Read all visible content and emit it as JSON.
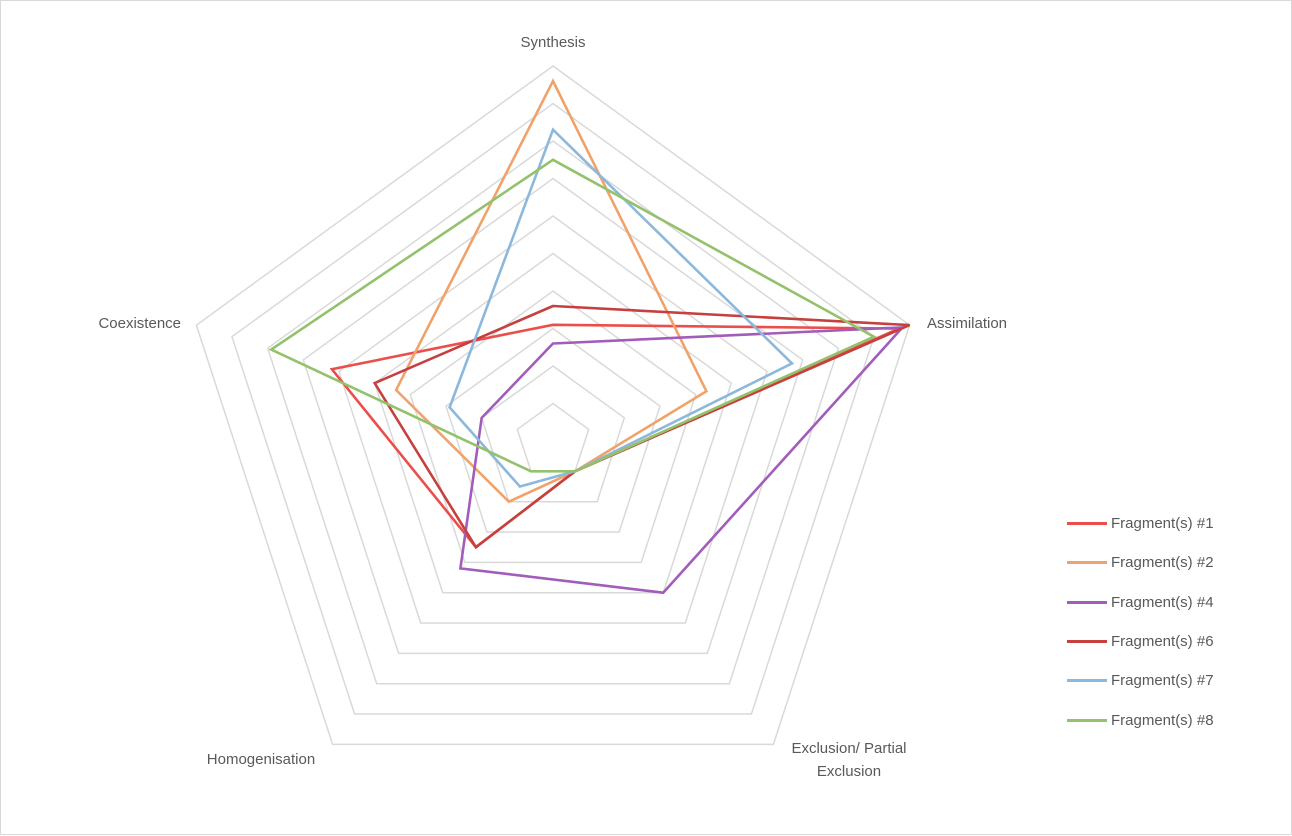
{
  "chart_data": {
    "type": "radar",
    "title": "",
    "axes": [
      "Synthesis",
      "Assimilation",
      "Exclusion/ Partial Exclusion",
      "Homogenisation",
      "Coexistence"
    ],
    "axis_label_lines": [
      [
        "Synthesis"
      ],
      [
        "Assimilation"
      ],
      [
        "Exclusion/ Partial",
        "Exclusion"
      ],
      [
        "Homogenisation"
      ],
      [
        "Coexistence"
      ]
    ],
    "rmax": 10,
    "grid_levels": [
      1,
      2,
      3,
      4,
      5,
      6,
      7,
      8,
      9,
      10
    ],
    "series": [
      {
        "name": "Fragment(s) #1",
        "color": "#ea4f4c",
        "values": [
          3.1,
          9.7,
          1.0,
          3.5,
          6.2
        ]
      },
      {
        "name": "Fragment(s) #2",
        "color": "#f0a26b",
        "values": [
          9.6,
          4.3,
          1.0,
          2.0,
          4.4
        ]
      },
      {
        "name": "Fragment(s) #4",
        "color": "#a25cba",
        "values": [
          2.6,
          9.8,
          5.0,
          4.2,
          2.0
        ]
      },
      {
        "name": "Fragment(s) #6",
        "color": "#c5403e",
        "values": [
          3.6,
          10.0,
          1.0,
          3.5,
          5.0
        ]
      },
      {
        "name": "Fragment(s) #7",
        "color": "#8cb8dc",
        "values": [
          8.3,
          6.7,
          1.0,
          1.5,
          2.9
        ]
      },
      {
        "name": "Fragment(s) #8",
        "color": "#93c16c",
        "values": [
          7.5,
          9.0,
          1.0,
          1.0,
          7.9
        ]
      }
    ],
    "legend_position": "right"
  },
  "colors": {
    "grid": "#d9d9d9",
    "text": "#595959"
  }
}
